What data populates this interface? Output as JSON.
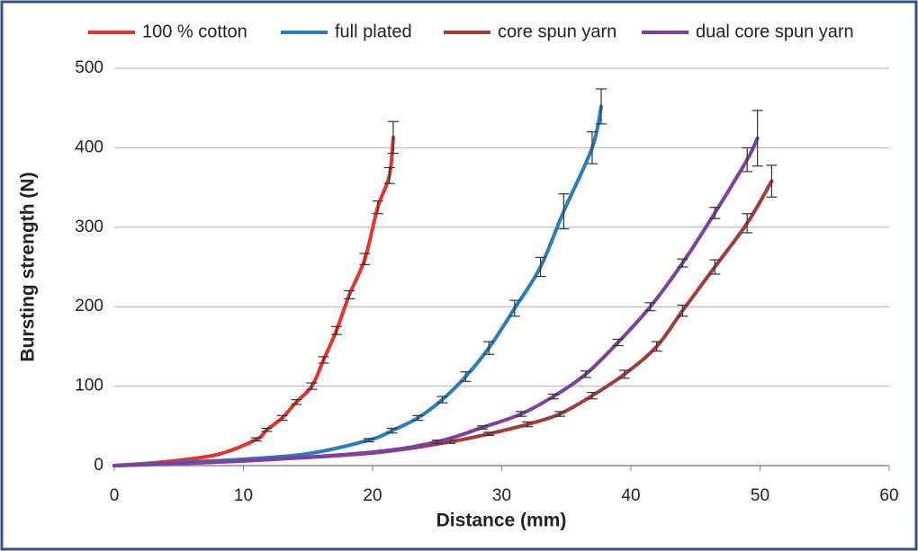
{
  "chart_data": {
    "type": "line",
    "x_label": "Distance (mm)",
    "y_label": "Bursting strength (N)",
    "xlim": [
      0,
      60
    ],
    "xticks": [
      0,
      10,
      20,
      30,
      40,
      50,
      60
    ],
    "ylim": [
      0,
      500
    ],
    "yticks": [
      0,
      100,
      200,
      300,
      400,
      500
    ],
    "grid": true,
    "legend": "top",
    "series": [
      {
        "name": "100 % cotton",
        "color": "#e8312a",
        "x": [
          0,
          4,
          8,
          11,
          11.8,
          13,
          14.1,
          15.3,
          16.2,
          17.2,
          18.2,
          19.4,
          20.4,
          21.3,
          21.6
        ],
        "values": [
          0,
          5,
          14,
          33,
          45,
          60,
          80,
          100,
          133,
          170,
          215,
          260,
          325,
          365,
          413
        ],
        "errors": [
          0,
          0,
          0,
          2,
          2,
          3,
          3,
          4,
          4,
          5,
          5,
          7,
          8,
          10,
          20
        ]
      },
      {
        "name": "full plated",
        "color": "#2b7bc0",
        "x": [
          0,
          5,
          10,
          15,
          19.7,
          21.5,
          23.5,
          25.4,
          27.2,
          29,
          31,
          33,
          34.8,
          37,
          37.7
        ],
        "values": [
          0,
          4,
          8,
          15,
          32,
          44,
          60,
          83,
          112,
          148,
          198,
          250,
          320,
          400,
          452
        ],
        "errors": [
          0,
          0,
          0,
          0,
          2,
          3,
          3,
          4,
          6,
          8,
          10,
          12,
          22,
          20,
          22
        ]
      },
      {
        "name": "core spun yarn",
        "color": "#a33b36",
        "x": [
          0,
          10,
          20,
          26,
          29,
          32,
          34.5,
          37,
          39.5,
          42,
          44,
          46.5,
          49,
          50.9
        ],
        "values": [
          0,
          6,
          16,
          30,
          40,
          52,
          65,
          88,
          115,
          150,
          195,
          250,
          305,
          358
        ],
        "errors": [
          0,
          0,
          0,
          2,
          2,
          3,
          3,
          4,
          5,
          6,
          7,
          9,
          12,
          20
        ]
      },
      {
        "name": "dual core spun yarn",
        "color": "#7d3fa0",
        "x": [
          0,
          10,
          20,
          25,
          28.5,
          31.5,
          34,
          36.5,
          39,
          41.5,
          44,
          46.5,
          49,
          49.8
        ],
        "values": [
          0,
          6,
          17,
          30,
          48,
          65,
          87,
          115,
          155,
          200,
          255,
          318,
          385,
          412
        ],
        "errors": [
          0,
          0,
          0,
          2,
          2,
          3,
          3,
          4,
          4,
          5,
          5,
          7,
          15,
          35
        ]
      }
    ]
  }
}
